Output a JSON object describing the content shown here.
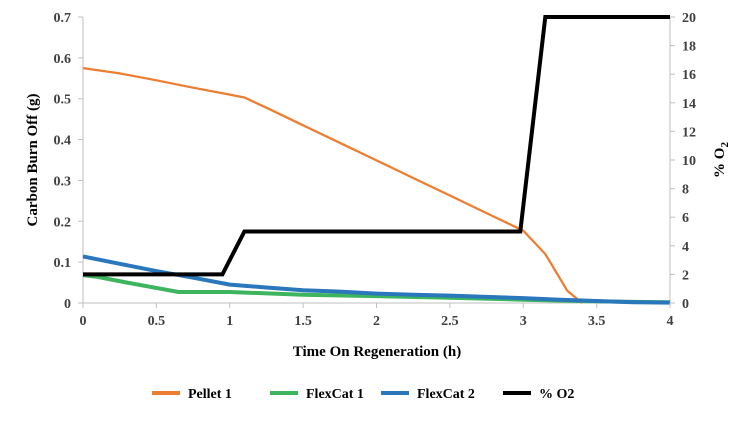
{
  "chart_data": {
    "type": "line",
    "title": "",
    "xlabel": "Time On Regeneration (h)",
    "ylabel": "Carbon Burn Off (g)",
    "y2label_main": "% O",
    "y2label_sub": "2",
    "xlim": [
      0,
      4
    ],
    "ylim": [
      0,
      0.7
    ],
    "y2lim": [
      0,
      20
    ],
    "grid": false,
    "legend_position": "bottom",
    "x_ticks": [
      0,
      0.5,
      1,
      1.5,
      2,
      2.5,
      3,
      3.5,
      4
    ],
    "x_tick_labels": [
      "0",
      "0.5",
      "1",
      "1.5",
      "2",
      "2.5",
      "3",
      "3.5",
      "4"
    ],
    "y_ticks": [
      0,
      0.1,
      0.2,
      0.3,
      0.4,
      0.5,
      0.6,
      0.7
    ],
    "y_tick_labels": [
      "0",
      "0.1",
      "0.2",
      "0.3",
      "0.4",
      "0.5",
      "0.6",
      "0.7"
    ],
    "y2_ticks": [
      0,
      2,
      4,
      6,
      8,
      10,
      12,
      14,
      16,
      18,
      20
    ],
    "y2_tick_labels": [
      "0",
      "2",
      "4",
      "6",
      "8",
      "10",
      "12",
      "14",
      "16",
      "18",
      "20"
    ],
    "series": [
      {
        "name": "Pellet 1",
        "color": "#ED7D31",
        "axis": "left",
        "x": [
          0,
          0.25,
          0.5,
          0.75,
          1.0,
          1.1,
          1.25,
          1.5,
          1.75,
          2.0,
          2.25,
          2.5,
          2.75,
          3.0,
          3.15,
          3.3,
          3.4
        ],
        "y": [
          0.575,
          0.562,
          0.545,
          0.527,
          0.51,
          0.503,
          0.478,
          0.435,
          0.392,
          0.349,
          0.306,
          0.263,
          0.22,
          0.177,
          0.12,
          0.03,
          0.0
        ]
      },
      {
        "name": "FlexCat 1",
        "color": "#3CB55E",
        "axis": "left",
        "x": [
          0,
          0.1,
          0.3,
          0.65,
          1.0,
          1.5,
          2.0,
          2.5,
          3.0,
          3.5,
          4.0
        ],
        "y": [
          0.068,
          0.064,
          0.05,
          0.027,
          0.027,
          0.02,
          0.017,
          0.013,
          0.008,
          0.004,
          0.002
        ]
      },
      {
        "name": "FlexCat 2",
        "color": "#2A77BC",
        "axis": "left",
        "x": [
          0,
          0.25,
          0.5,
          0.75,
          1.0,
          1.25,
          1.5,
          1.75,
          2.0,
          2.25,
          2.5,
          2.75,
          3.0,
          3.25,
          3.5,
          3.75,
          4.0
        ],
        "y": [
          0.114,
          0.096,
          0.078,
          0.062,
          0.045,
          0.038,
          0.031,
          0.028,
          0.023,
          0.02,
          0.018,
          0.015,
          0.012,
          0.008,
          0.005,
          0.002,
          0.001
        ]
      },
      {
        "name": "% O2",
        "color": "#000000",
        "axis": "right",
        "x": [
          0,
          0.95,
          1.1,
          2.98,
          3.15,
          4.0
        ],
        "y": [
          2,
          2,
          5,
          5,
          20,
          20
        ]
      }
    ]
  }
}
